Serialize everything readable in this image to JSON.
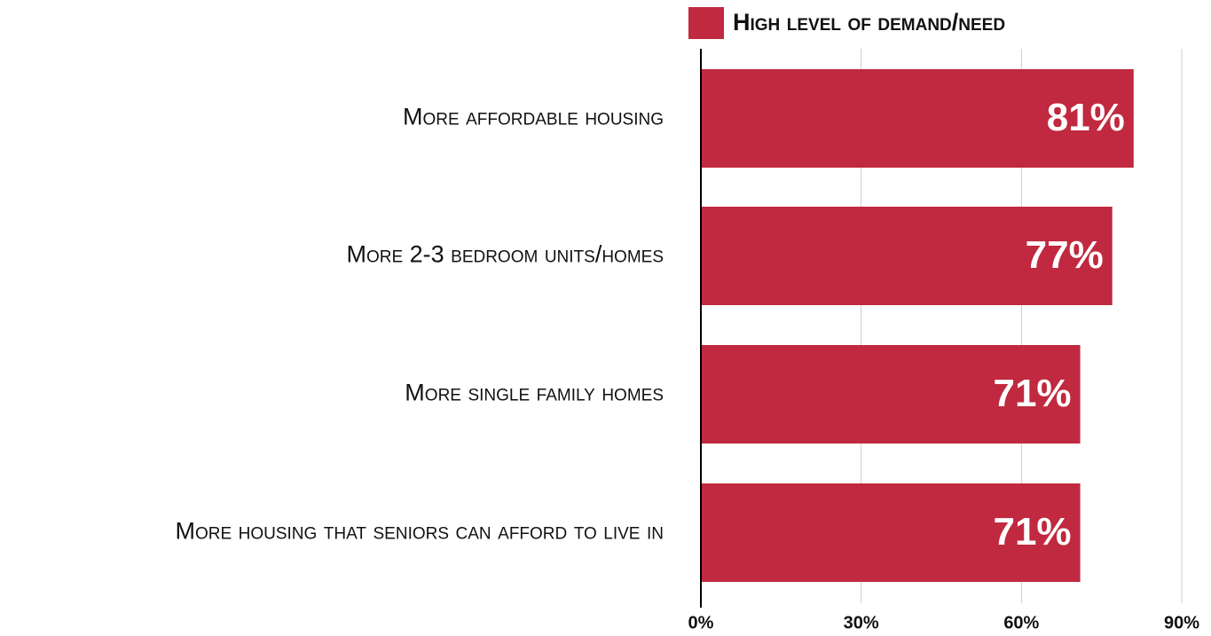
{
  "chart_data": {
    "type": "bar",
    "orientation": "horizontal",
    "categories": [
      "More affordable housing",
      "More 2-3 bedroom units/homes",
      "More single family homes",
      "More housing that seniors can afford to live in"
    ],
    "series": [
      {
        "name": "High level of demand/need",
        "color": "#c0293f",
        "values": [
          81,
          77,
          71,
          71
        ],
        "value_labels": [
          "81%",
          "77%",
          "71%",
          "71%"
        ]
      }
    ],
    "xlim": [
      0,
      90
    ],
    "xticks": [
      {
        "value": 0,
        "label": "0%"
      },
      {
        "value": 30,
        "label": "30%"
      },
      {
        "value": 60,
        "label": "60%"
      },
      {
        "value": 90,
        "label": "90%"
      }
    ],
    "grid": true,
    "legend": "top"
  }
}
